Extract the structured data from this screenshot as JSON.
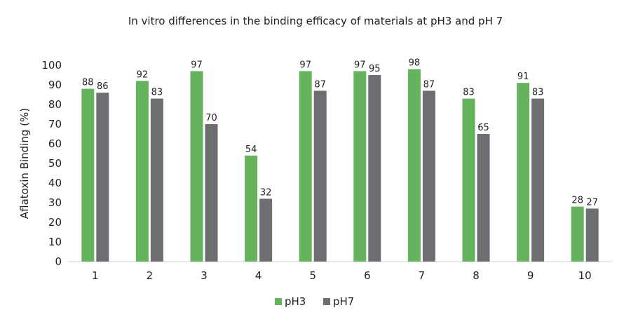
{
  "chart_data": {
    "type": "bar",
    "title": "In vitro differences in the binding efficacy of materials at pH3 and pH 7",
    "xlabel": "",
    "ylabel": "Aflatoxin Binding (%)",
    "ylim": [
      0,
      100
    ],
    "yticks": [
      0,
      10,
      20,
      30,
      40,
      50,
      60,
      70,
      80,
      90,
      100
    ],
    "grid": false,
    "legend_position": "bottom",
    "categories": [
      "1",
      "2",
      "3",
      "4",
      "5",
      "6",
      "7",
      "8",
      "9",
      "10"
    ],
    "series": [
      {
        "name": "pH3",
        "color": "#66b35e",
        "values": [
          88,
          92,
          97,
          54,
          97,
          97,
          98,
          83,
          91,
          28
        ]
      },
      {
        "name": "pH7",
        "color": "#6d6e71",
        "values": [
          86,
          83,
          70,
          32,
          87,
          95,
          87,
          65,
          83,
          27
        ]
      }
    ]
  }
}
